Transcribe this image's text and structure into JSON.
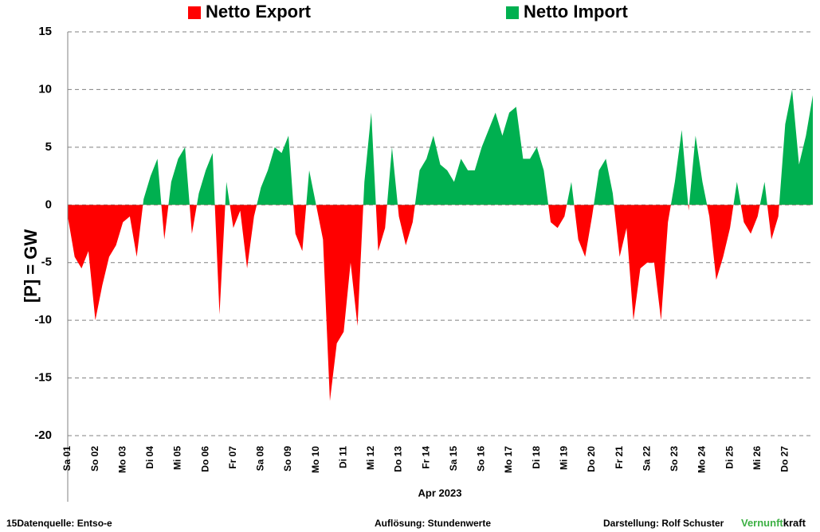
{
  "chart_data": {
    "type": "area",
    "legend": [
      {
        "name": "Netto Export",
        "color": "#ff0000"
      },
      {
        "name": "Netto Import",
        "color": "#00b050"
      }
    ],
    "ylabel": "[P] = GW",
    "xlabel": "Apr 2023",
    "categories": [
      "Sa 01",
      null,
      null,
      null,
      "So 02",
      null,
      null,
      null,
      "Mo 03",
      null,
      null,
      null,
      "Di 04",
      null,
      null,
      null,
      "Mi 05",
      null,
      null,
      null,
      "Do 06",
      null,
      null,
      null,
      "Fr 07",
      null,
      null,
      null,
      "Sa 08",
      null,
      null,
      null,
      "So 09",
      null,
      null,
      null,
      "Mo 10",
      null,
      null,
      null,
      "Di 11",
      null,
      null,
      null,
      "Mi 12",
      null,
      null,
      null,
      "Do 13",
      null,
      null,
      null,
      "Fr 14",
      null,
      null,
      null,
      "Sa 15",
      null,
      null,
      null,
      "So 16",
      null,
      null,
      null,
      "Mo 17",
      null,
      null,
      null,
      "Di 18",
      null,
      null,
      null,
      "Mi 19",
      null,
      null,
      null,
      "Do 20",
      null,
      null,
      null,
      "Fr 21",
      null,
      null,
      null,
      "Sa 22",
      null,
      null,
      null,
      "So 23",
      null,
      null,
      null,
      "Mo 24",
      null,
      null,
      null,
      "Di 25",
      null,
      null,
      null,
      "Mi 26",
      null,
      null,
      null,
      "Do 27",
      null,
      null,
      null,
      null
    ],
    "values": [
      -1,
      -4.5,
      -5.5,
      -4,
      -10,
      -7,
      -4.5,
      -3.5,
      -1.5,
      -1,
      -4.5,
      0.5,
      2.5,
      4,
      -3,
      2,
      4,
      5,
      -2.5,
      1,
      3,
      4.5,
      -9.5,
      2,
      -2,
      -0.5,
      -5.5,
      -1,
      1.5,
      3,
      5,
      4.5,
      6,
      -2.5,
      -4,
      3,
      0,
      -3,
      -17,
      -12,
      -11,
      -5,
      -10.5,
      2,
      8,
      -4,
      -2,
      5,
      -1,
      -3.5,
      -1.5,
      3,
      4,
      6,
      3.5,
      3,
      2,
      4,
      3,
      3,
      5,
      6.5,
      8,
      6,
      8,
      8.5,
      4,
      4,
      5,
      3,
      -1.5,
      -2,
      -1,
      2,
      -3,
      -4.5,
      -1,
      3,
      4,
      1,
      -4.5,
      -2,
      -10,
      -5.5,
      -5,
      -5,
      -10,
      -1.5,
      2,
      6.5,
      -0.5,
      6,
      2,
      -1,
      -6.5,
      -4.5,
      -2,
      2,
      -1.5,
      -2.5,
      -1,
      2,
      -3,
      -1,
      7,
      10,
      3.5,
      6,
      9.5
    ],
    "ylim": [
      -20,
      15
    ],
    "yticks": [
      -20,
      -15,
      -10,
      -5,
      0,
      5,
      10,
      15
    ],
    "grid": true,
    "footer": {
      "source": "15Datenquelle: Entso-e",
      "resolution": "Auflösung: Stundenwerte",
      "author": "Darstellung:  Rolf Schuster",
      "brand_a": "Vernunft",
      "brand_b": "kraft"
    }
  }
}
